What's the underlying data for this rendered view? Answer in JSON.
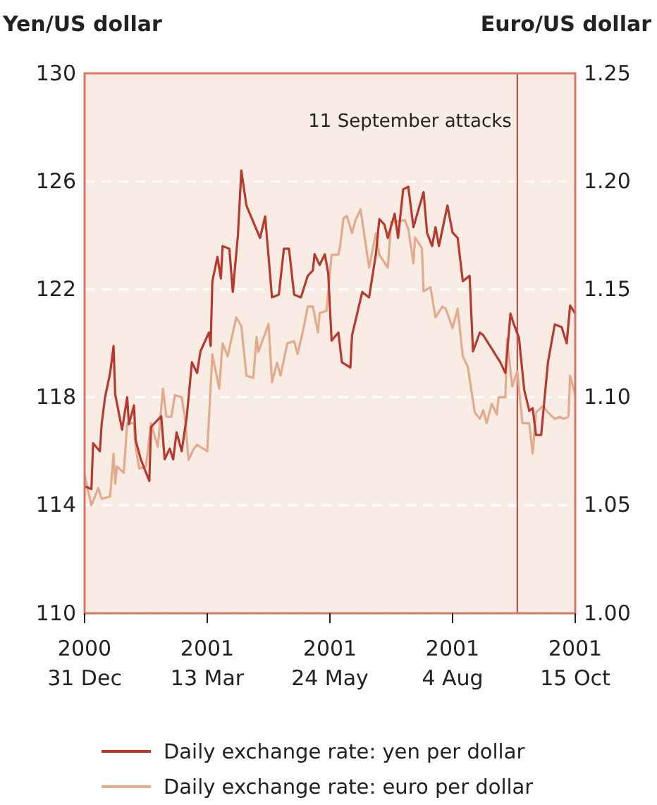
{
  "chart_data": {
    "type": "line",
    "ylabel": "Yen/US dollar",
    "y2label": "Euro/US dollar",
    "xlim": [
      "2000-12-31",
      "2001-10-15"
    ],
    "xticks": [
      {
        "value": "2000-12-31",
        "label": "2000\n31 Dec"
      },
      {
        "value": "2001-03-13",
        "label": "2001\n13 Mar"
      },
      {
        "value": "2001-05-24",
        "label": "2001\n24 May"
      },
      {
        "value": "2001-08-04",
        "label": "2001\n4 Aug"
      },
      {
        "value": "2001-10-15",
        "label": "2001\n15 Oct"
      }
    ],
    "ylim": [
      110,
      130
    ],
    "yticks": [
      110,
      114,
      118,
      122,
      126,
      130
    ],
    "y2lim": [
      1.0,
      1.25
    ],
    "y2ticks": [
      {
        "value": 1.0,
        "label": "1.00"
      },
      {
        "value": 1.05,
        "label": "1.05"
      },
      {
        "value": 1.1,
        "label": "1.10"
      },
      {
        "value": 1.15,
        "label": "1.15"
      },
      {
        "value": 1.2,
        "label": "1.20"
      },
      {
        "value": 1.25,
        "label": "1.25"
      }
    ],
    "grid": "y",
    "legend": "bottom",
    "line_style": "solid",
    "ref_lines": [
      {
        "axis": "x",
        "value": "2001-09-11",
        "label": "11 September attacks",
        "color": "#b5443a"
      }
    ],
    "series": [
      {
        "name": "Daily exchange rate: yen per dollar",
        "color": "#b83a2e",
        "x": [
          "2000-12-31",
          "2001-01-04",
          "2001-01-05",
          "2001-01-09",
          "2001-01-10",
          "2001-01-12",
          "2001-01-15",
          "2001-01-17",
          "2001-01-18",
          "2001-01-22",
          "2001-01-25",
          "2001-01-26",
          "2001-01-29",
          "2001-01-30",
          "2001-02-02",
          "2001-02-07",
          "2001-02-08",
          "2001-02-14",
          "2001-02-16",
          "2001-02-19",
          "2001-02-21",
          "2001-02-23",
          "2001-02-26",
          "2001-03-01",
          "2001-03-04",
          "2001-03-07",
          "2001-03-09",
          "2001-03-14",
          "2001-03-15",
          "2001-03-16",
          "2001-03-19",
          "2001-03-21",
          "2001-03-22",
          "2001-03-26",
          "2001-03-28",
          "2001-03-31",
          "2001-04-02",
          "2001-04-05",
          "2001-04-09",
          "2001-04-13",
          "2001-04-16",
          "2001-04-20",
          "2001-04-24",
          "2001-04-27",
          "2001-04-30",
          "2001-05-03",
          "2001-05-07",
          "2001-05-11",
          "2001-05-14",
          "2001-05-15",
          "2001-05-18",
          "2001-05-21",
          "2001-05-23",
          "2001-05-25",
          "2001-05-29",
          "2001-05-31",
          "2001-06-05",
          "2001-06-06",
          "2001-06-12",
          "2001-06-16",
          "2001-06-20",
          "2001-06-22",
          "2001-06-25",
          "2001-06-27",
          "2001-07-01",
          "2001-07-03",
          "2001-07-06",
          "2001-07-09",
          "2001-07-12",
          "2001-07-18",
          "2001-07-20",
          "2001-07-23",
          "2001-07-25",
          "2001-07-27",
          "2001-08-01",
          "2001-08-04",
          "2001-08-07",
          "2001-08-10",
          "2001-08-14",
          "2001-08-16",
          "2001-08-20",
          "2001-08-22",
          "2001-08-26",
          "2001-09-01",
          "2001-09-04",
          "2001-09-07",
          "2001-09-09",
          "2001-09-12",
          "2001-09-15",
          "2001-09-18",
          "2001-09-20",
          "2001-09-22",
          "2001-09-25",
          "2001-09-29",
          "2001-10-03",
          "2001-10-07",
          "2001-10-10",
          "2001-10-12",
          "2001-10-15"
        ],
        "values": [
          114.7,
          114.6,
          116.3,
          116.0,
          117.0,
          118.0,
          118.9,
          119.9,
          118.1,
          116.8,
          118.0,
          117.0,
          117.7,
          116.4,
          115.7,
          114.9,
          116.9,
          117.3,
          115.7,
          116.1,
          115.7,
          116.7,
          116.0,
          117.3,
          119.3,
          118.9,
          119.7,
          120.4,
          119.9,
          122.3,
          123.2,
          122.4,
          123.6,
          123.5,
          121.9,
          124.0,
          126.4,
          125.1,
          124.5,
          123.9,
          124.7,
          121.7,
          121.8,
          123.5,
          123.5,
          121.8,
          121.7,
          122.5,
          122.7,
          123.3,
          122.9,
          123.3,
          122.6,
          120.1,
          120.4,
          119.3,
          119.1,
          120.3,
          121.9,
          121.7,
          123.3,
          124.6,
          124.4,
          123.9,
          124.8,
          123.9,
          125.7,
          125.8,
          124.3,
          125.6,
          124.1,
          123.6,
          124.3,
          123.6,
          125.1,
          124.1,
          123.9,
          122.3,
          122.5,
          119.7,
          120.4,
          120.3,
          119.9,
          119.3,
          118.9,
          121.1,
          120.7,
          120.2,
          118.3,
          117.5,
          117.6,
          116.6,
          116.6,
          119.3,
          120.7,
          120.6,
          120.0,
          121.4,
          121.1
        ]
      },
      {
        "name": "Daily exchange rate: euro per dollar",
        "color": "#e3ab8d",
        "axis": "y2",
        "x": [
          "2000-12-31",
          "2001-01-04",
          "2001-01-08",
          "2001-01-10",
          "2001-01-15",
          "2001-01-17",
          "2001-01-18",
          "2001-01-19",
          "2001-01-23",
          "2001-01-25",
          "2001-01-29",
          "2001-01-30",
          "2001-02-01",
          "2001-02-05",
          "2001-02-06",
          "2001-02-08",
          "2001-02-12",
          "2001-02-15",
          "2001-02-17",
          "2001-02-20",
          "2001-02-22",
          "2001-02-26",
          "2001-02-28",
          "2001-03-02",
          "2001-03-05",
          "2001-03-07",
          "2001-03-13",
          "2001-03-16",
          "2001-03-20",
          "2001-03-22",
          "2001-03-25",
          "2001-03-30",
          "2001-04-02",
          "2001-04-05",
          "2001-04-09",
          "2001-04-11",
          "2001-04-12",
          "2001-04-18",
          "2001-04-20",
          "2001-04-23",
          "2001-04-25",
          "2001-04-29",
          "2001-05-03",
          "2001-05-05",
          "2001-05-08",
          "2001-05-11",
          "2001-05-14",
          "2001-05-17",
          "2001-05-18",
          "2001-05-22",
          "2001-05-25",
          "2001-05-29",
          "2001-05-30",
          "2001-06-01",
          "2001-06-03",
          "2001-06-06",
          "2001-06-08",
          "2001-06-11",
          "2001-06-16",
          "2001-06-20",
          "2001-06-22",
          "2001-06-27",
          "2001-06-29",
          "2001-07-07",
          "2001-07-09",
          "2001-07-12",
          "2001-07-13",
          "2001-07-17",
          "2001-07-18",
          "2001-07-22",
          "2001-07-25",
          "2001-07-29",
          "2001-07-31",
          "2001-08-04",
          "2001-08-07",
          "2001-08-10",
          "2001-08-13",
          "2001-08-17",
          "2001-08-20",
          "2001-08-22",
          "2001-08-24",
          "2001-08-27",
          "2001-08-30",
          "2001-08-31",
          "2001-09-04",
          "2001-09-05",
          "2001-09-08",
          "2001-09-11",
          "2001-09-14",
          "2001-09-18",
          "2001-09-20",
          "2001-09-22",
          "2001-09-26",
          "2001-09-29",
          "2001-10-03",
          "2001-10-06",
          "2001-10-08",
          "2001-10-11",
          "2001-10-12",
          "2001-10-15"
        ],
        "values": [
          1.064,
          1.05,
          1.058,
          1.053,
          1.054,
          1.074,
          1.06,
          1.068,
          1.065,
          1.088,
          1.088,
          1.077,
          1.067,
          1.068,
          1.074,
          1.088,
          1.077,
          1.104,
          1.091,
          1.091,
          1.101,
          1.1,
          1.09,
          1.071,
          1.076,
          1.078,
          1.075,
          1.12,
          1.104,
          1.125,
          1.119,
          1.137,
          1.133,
          1.11,
          1.109,
          1.128,
          1.121,
          1.134,
          1.107,
          1.116,
          1.11,
          1.125,
          1.126,
          1.12,
          1.13,
          1.142,
          1.142,
          1.13,
          1.139,
          1.14,
          1.166,
          1.166,
          1.17,
          1.183,
          1.184,
          1.176,
          1.182,
          1.187,
          1.16,
          1.176,
          1.166,
          1.16,
          1.181,
          1.182,
          1.178,
          1.162,
          1.174,
          1.169,
          1.149,
          1.151,
          1.137,
          1.142,
          1.141,
          1.132,
          1.141,
          1.119,
          1.114,
          1.093,
          1.09,
          1.094,
          1.088,
          1.097,
          1.092,
          1.1,
          1.1,
          1.127,
          1.105,
          1.112,
          1.088,
          1.088,
          1.074,
          1.093,
          1.096,
          1.093,
          1.09,
          1.091,
          1.09,
          1.091,
          1.11,
          1.101
        ]
      }
    ]
  }
}
